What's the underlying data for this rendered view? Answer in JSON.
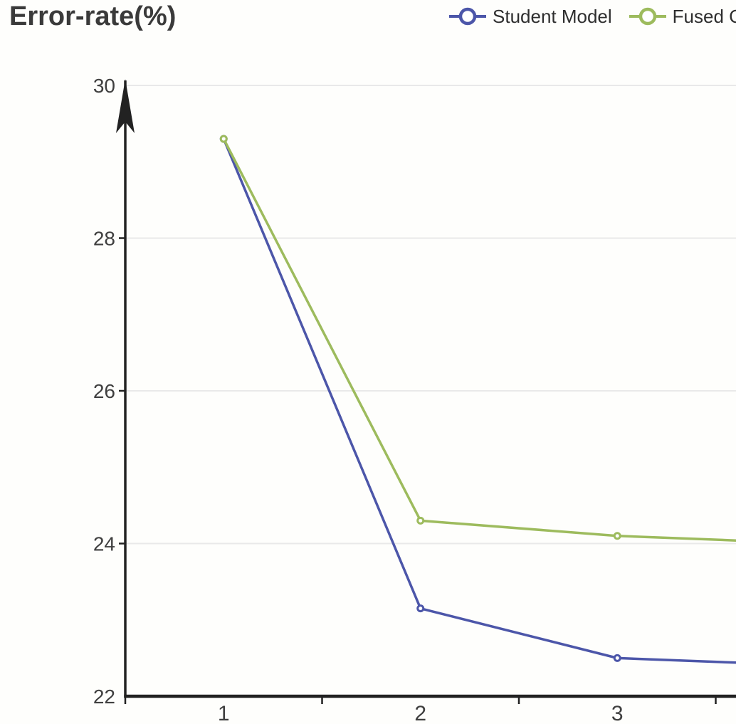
{
  "title": "Error-rate(%)",
  "legend": {
    "position": "top-right",
    "items": [
      {
        "label": "Student Model",
        "color": "#4c56a9"
      },
      {
        "label": "Fused C",
        "color": "#9dbb5d"
      }
    ]
  },
  "chart_data": {
    "type": "line",
    "title": "Error-rate(%)",
    "categories": [
      "1",
      "2",
      "3"
    ],
    "series": [
      {
        "name": "Student Model",
        "color": "#4c56a9",
        "marker": "open-circle",
        "values": [
          29.3,
          23.15,
          22.5
        ],
        "value_at_right_edge": 22.44
      },
      {
        "name": "Fused C",
        "color": "#9dbb5d",
        "marker": "open-circle",
        "values": [
          29.3,
          24.3,
          24.1
        ],
        "value_at_right_edge": 24.04
      }
    ],
    "ylabel": "Error-rate(%)",
    "xlabel": "",
    "ylim": [
      22,
      30
    ],
    "y_ticks": [
      30,
      28,
      26,
      24,
      22
    ],
    "grid": true,
    "legend_position": "top-right",
    "note": "x axis continues past category 3 and is clipped at the right edge"
  },
  "colors": {
    "axis": "#222222",
    "grid": "#e9e9e9",
    "tick_label": "#3f3f3f",
    "title_text": "#3a3a3a",
    "background": "#fefefc"
  }
}
